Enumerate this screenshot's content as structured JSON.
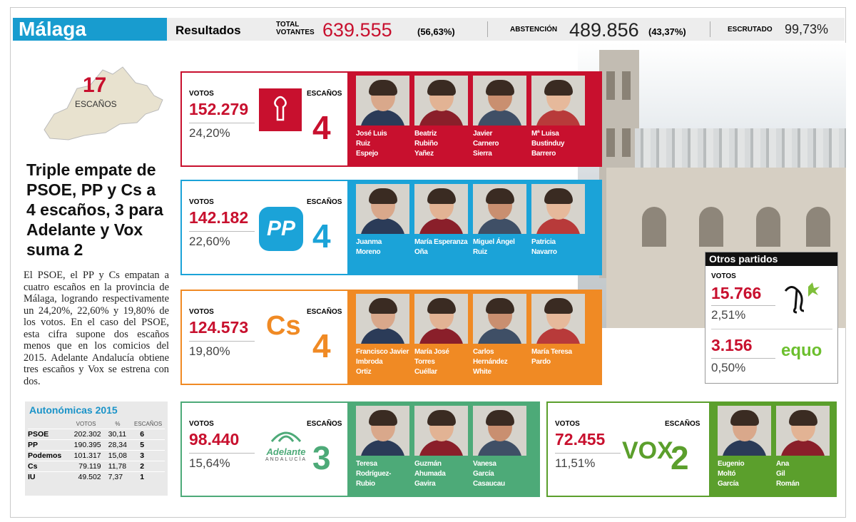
{
  "header": {
    "region": "Málaga",
    "results_label": "Resultados",
    "total_label_1": "TOTAL",
    "total_label_2": "VOTANTES",
    "total_value": "639.555",
    "total_pct": "(56,63%)",
    "abstention_label": "ABSTENCIÓN",
    "abstention_value": "489.856",
    "abstention_pct": "(43,37%)",
    "scrutiny_label": "ESCRUTADO",
    "scrutiny_value": "99,73%"
  },
  "map": {
    "seats": "17",
    "seats_label": "ESCAÑOS"
  },
  "headline": "Triple empate de PSOE, PP y Cs a 4 escaños, 3 para Adelante y Vox suma 2",
  "body": "El PSOE, el PP y Cs empatan a cuatro escaños en la provincia de Málaga, logrando respectivamente un 24,20%, 22,60% y 19,80% de los votos. En el caso del PSOE, esta cifra supone dos escaños menos que en los comicios del 2015. Adelante Andalucía obtiene tres escaños y Vox se estrena con dos.",
  "autonomicas": {
    "title": "Autonómicas 2015",
    "col_votes": "VOTOS",
    "col_pct": "%",
    "col_seats": "ESCAÑOS",
    "rows": [
      {
        "party": "PSOE",
        "votes": "202.302",
        "pct": "30,11",
        "seats": "6"
      },
      {
        "party": "PP",
        "votes": "190.395",
        "pct": "28,34",
        "seats": "5"
      },
      {
        "party": "Podemos",
        "votes": "101.317",
        "pct": "15,08",
        "seats": "3"
      },
      {
        "party": "Cs",
        "votes": "79.119",
        "pct": "11,78",
        "seats": "2"
      },
      {
        "party": "IU",
        "votes": "49.502",
        "pct": "7,37",
        "seats": "1"
      }
    ]
  },
  "labels": {
    "votes": "VOTOS",
    "seats": "ESCAÑOS"
  },
  "parties": [
    {
      "id": "psoe",
      "votes": "152.279",
      "pct": "24,20%",
      "seats": "4",
      "color": "#c8102e",
      "candidates": [
        [
          "José Luis",
          "Ruiz",
          "Espejo"
        ],
        [
          "Beatriz",
          "Rubiño",
          "Yañez"
        ],
        [
          "Javier",
          "Carnero",
          "Sierra"
        ],
        [
          "Mª Luisa",
          "Bustinduy",
          "Barrero"
        ]
      ]
    },
    {
      "id": "pp",
      "votes": "142.182",
      "pct": "22,60%",
      "seats": "4",
      "color": "#1ba3d8",
      "candidates": [
        [
          "Juanma",
          "Moreno"
        ],
        [
          "María Esperanza",
          "Oña"
        ],
        [
          "Miguel Ángel",
          "Ruiz"
        ],
        [
          "Patricia",
          "Navarro"
        ]
      ]
    },
    {
      "id": "cs",
      "votes": "124.573",
      "pct": "19,80%",
      "seats": "4",
      "color": "#f08a24",
      "logo": "Cs",
      "candidates": [
        [
          "Francisco Javier",
          "Imbroda",
          "Ortiz"
        ],
        [
          "María José",
          "Torres",
          "Cuéllar"
        ],
        [
          "Carlos",
          "Hernández",
          "White"
        ],
        [
          "María Teresa",
          "Pardo"
        ]
      ]
    },
    {
      "id": "adelante",
      "votes": "98.440",
      "pct": "15,64%",
      "seats": "3",
      "color": "#4daa78",
      "logo": "Adelante",
      "logo_sub": "ANDALUCÍA",
      "candidates": [
        [
          "Teresa",
          "Rodríguez-",
          "Rubio"
        ],
        [
          "Guzmán",
          "Ahumada",
          "Gavira"
        ],
        [
          "Vanesa",
          "García",
          "Casaucau"
        ]
      ]
    },
    {
      "id": "vox",
      "votes": "72.455",
      "pct": "11,51%",
      "seats": "2",
      "color": "#5b9f2c",
      "logo": "VOX",
      "candidates": [
        [
          "Eugenio",
          "Moltó",
          "García"
        ],
        [
          "Ana",
          "Gil",
          "Román"
        ]
      ]
    }
  ],
  "others": {
    "title": "Otros partidos",
    "pacma_votes": "15.766",
    "pacma_pct": "2,51%",
    "equo_votes": "3.156",
    "equo_pct": "0,50%",
    "equo_logo": "equo"
  }
}
